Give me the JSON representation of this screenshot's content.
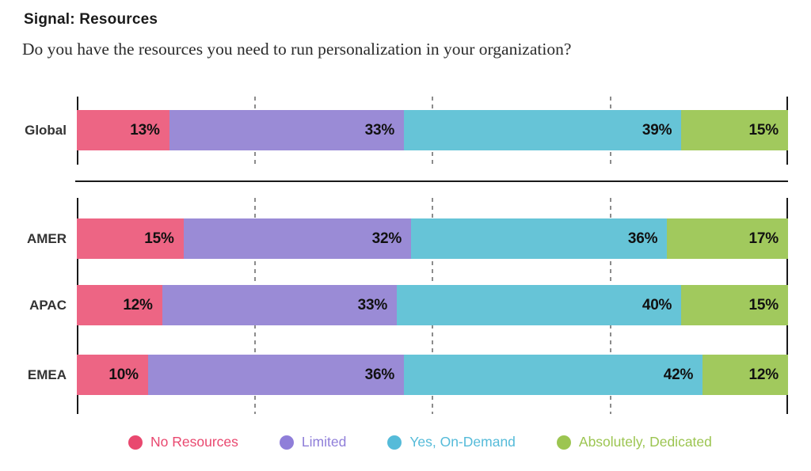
{
  "header": {
    "title": "Signal: Resources",
    "subtitle": "Do you have the resources you need to run personalization in your organization?"
  },
  "chart_data": {
    "type": "bar",
    "variant": "horizontal-stacked",
    "title": "Signal: Resources",
    "question": "Do you have the resources you need to run personalization in your organization?",
    "categories": [
      "Global",
      "AMER",
      "APAC",
      "EMEA"
    ],
    "groups": [
      [
        "Global"
      ],
      [
        "AMER",
        "APAC",
        "EMEA"
      ]
    ],
    "series": [
      {
        "name": "No Resources",
        "color": "#ED6584",
        "legend_color": "#E9486F",
        "values": [
          13,
          15,
          12,
          10
        ]
      },
      {
        "name": "Limited",
        "color": "#9A8BD6",
        "legend_color": "#8F7ED9",
        "values": [
          33,
          32,
          33,
          36
        ]
      },
      {
        "name": "Yes, On-Demand",
        "color": "#66C4D7",
        "legend_color": "#55BBD9",
        "values": [
          39,
          36,
          40,
          42
        ]
      },
      {
        "name": "Absolutely, Dedicated",
        "color": "#A1C95D",
        "legend_color": "#9CC551",
        "values": [
          15,
          17,
          15,
          12
        ]
      }
    ],
    "value_format": "percent",
    "xlim": [
      0,
      100
    ],
    "gridlines_percent": [
      25,
      50,
      75
    ],
    "grid_style": "dashed",
    "legend_position": "bottom"
  }
}
